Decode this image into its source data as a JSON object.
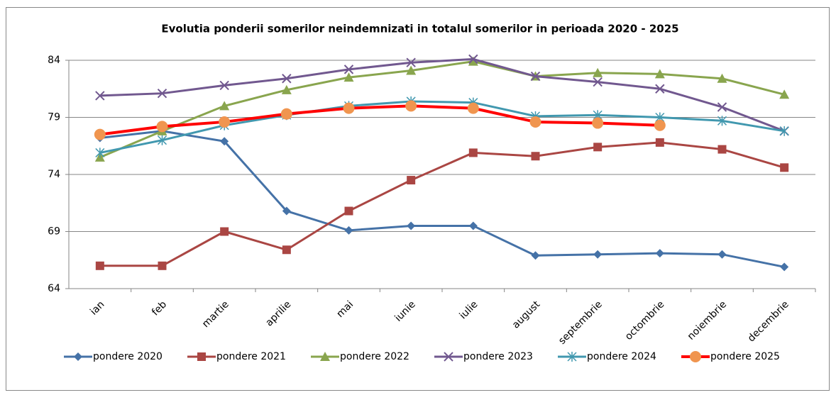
{
  "chart_data": {
    "type": "line",
    "title": "Evolutia ponderii somerilor neindemnizati in totalul somerilor in perioada 2020 -  2025",
    "categories": [
      "ian",
      "feb",
      "martie",
      "aprilie",
      "mai",
      "iunie",
      "iulie",
      "august",
      "septembrie",
      "octombrie",
      "noiembrie",
      "decembrie"
    ],
    "series": [
      {
        "name": "pondere 2020",
        "color": "#4572a7",
        "marker": "diamond",
        "values": [
          77.2,
          77.8,
          76.9,
          70.8,
          69.1,
          69.5,
          69.5,
          66.9,
          67.0,
          67.1,
          67.0,
          65.9
        ]
      },
      {
        "name": "pondere 2021",
        "color": "#aa4643",
        "marker": "square",
        "values": [
          66.0,
          66.0,
          69.0,
          67.4,
          70.8,
          73.5,
          75.9,
          75.6,
          76.4,
          76.8,
          76.2,
          74.6
        ]
      },
      {
        "name": "pondere 2022",
        "color": "#89a54e",
        "marker": "triangle",
        "values": [
          75.5,
          77.8,
          80.0,
          81.4,
          82.5,
          83.1,
          83.9,
          82.6,
          82.9,
          82.8,
          82.4,
          81.0
        ]
      },
      {
        "name": "pondere 2023",
        "color": "#71588f",
        "marker": "x",
        "values": [
          80.9,
          81.1,
          81.8,
          82.4,
          83.2,
          83.8,
          84.1,
          82.6,
          82.1,
          81.5,
          79.9,
          77.8
        ]
      },
      {
        "name": "pondere 2024",
        "color": "#4198af",
        "marker": "star",
        "values": [
          75.9,
          77.0,
          78.3,
          79.2,
          80.0,
          80.4,
          80.3,
          79.1,
          79.2,
          79.0,
          78.7,
          77.8
        ]
      },
      {
        "name": "pondere 2025",
        "color": "#ff0000",
        "marker": "circle",
        "marker_color": "#f0954f",
        "values": [
          77.5,
          78.2,
          78.6,
          79.3,
          79.8,
          80.0,
          79.8,
          78.6,
          78.5,
          78.3,
          null,
          null
        ]
      }
    ],
    "ylim": [
      64,
      84
    ],
    "yticks": [
      64,
      69,
      74,
      79,
      84
    ],
    "grid": true,
    "legend": "bottom"
  }
}
